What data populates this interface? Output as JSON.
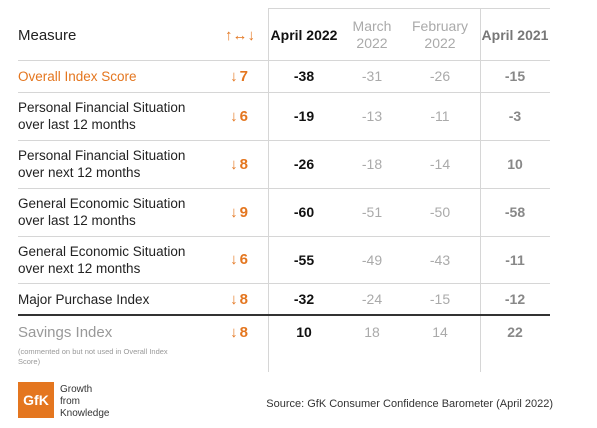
{
  "table": {
    "header": [
      "Measure",
      "↑↔↓",
      "April 2022",
      "March 2022",
      "February 2022",
      "April 2021"
    ],
    "rows": [
      {
        "measure": [
          "Overall Index Score"
        ],
        "change": "↓7",
        "values": [
          -38,
          -31,
          -26,
          -15
        ]
      },
      {
        "measure": [
          "Personal Financial Situation",
          "over last 12 months"
        ],
        "change": "↓6",
        "values": [
          -19,
          -13,
          -11,
          -3
        ]
      },
      {
        "measure": [
          "Personal Financial Situation",
          "over next 12 months"
        ],
        "change": "↓8",
        "values": [
          -26,
          -18,
          -14,
          10
        ]
      },
      {
        "measure": [
          "General Economic Situation",
          "over last 12 months"
        ],
        "change": "↓9",
        "values": [
          -60,
          -51,
          -50,
          -58
        ]
      },
      {
        "measure": [
          "General Economic Situation",
          "over next 12 months"
        ],
        "change": "↓6",
        "values": [
          -55,
          -49,
          -43,
          -11
        ]
      },
      {
        "measure": [
          "Major Purchase Index"
        ],
        "change": "↓8",
        "values": [
          -32,
          -24,
          -15,
          -12
        ]
      },
      {
        "measure": [
          "Savings Index"
        ],
        "note": "(commented on but not used in Overall Index Score)",
        "change": "↓8",
        "values": [
          10,
          18,
          14,
          22
        ]
      }
    ]
  },
  "footer": {
    "logo": "GfK",
    "tagline": [
      "Growth",
      "from",
      "Knowledge"
    ],
    "source": "Source: GfK Consumer Confidence Barometer (April 2022)"
  }
}
